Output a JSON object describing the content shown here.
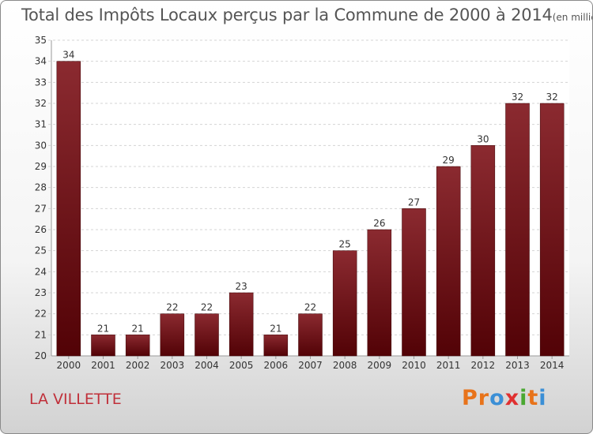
{
  "chart_data": {
    "type": "bar",
    "title": "Total des Impôts Locaux perçus par la Commune de 2000 à 2014",
    "subtitle": "(en milliers d'€)",
    "categories": [
      "2000",
      "2001",
      "2002",
      "2003",
      "2004",
      "2005",
      "2006",
      "2007",
      "2008",
      "2009",
      "2010",
      "2011",
      "2012",
      "2013",
      "2014"
    ],
    "values": [
      34,
      21,
      21,
      22,
      22,
      23,
      21,
      22,
      25,
      26,
      27,
      29,
      30,
      32,
      32
    ],
    "ylim": [
      20,
      35
    ],
    "yticks": [
      20,
      21,
      22,
      23,
      24,
      25,
      26,
      27,
      28,
      29,
      30,
      31,
      32,
      33,
      34,
      35
    ],
    "xlabel": "",
    "ylabel": "",
    "grid": true,
    "bar_color": "#6e1418"
  },
  "commune": {
    "name": "LA VILLETTE"
  },
  "logo": {
    "letters": [
      "P",
      "r",
      "o",
      "x",
      "i",
      "t",
      "i"
    ]
  }
}
